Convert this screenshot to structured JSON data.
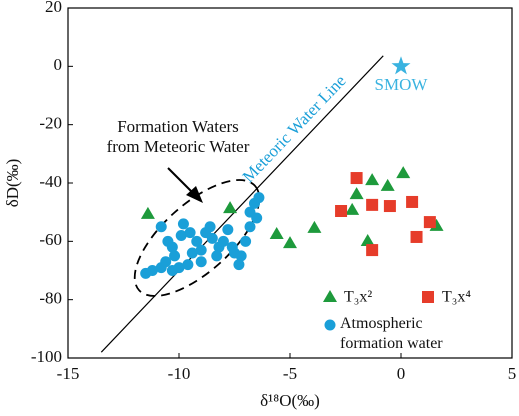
{
  "chart_data": {
    "type": "scatter",
    "xlabel": "δ¹⁸O(‰)",
    "ylabel": "δD(‰)",
    "xlim": [
      -15,
      5
    ],
    "ylim": [
      -100,
      20
    ],
    "xticks": [
      -15,
      -10,
      -5,
      0,
      5
    ],
    "yticks": [
      20,
      0,
      -20,
      -40,
      -60,
      -80,
      -100
    ],
    "series": [
      {
        "name": "T₃x²",
        "color": "#1e9a3c",
        "marker": "triangle",
        "x": [
          -11.4,
          -7.7,
          -5.6,
          -5.0,
          -3.9,
          -2.0,
          -1.3,
          -0.6,
          0.1,
          -2.2,
          -1.5,
          1.6
        ],
        "values": [
          -50.6,
          -48.6,
          -57.5,
          -60.6,
          -55.4,
          -43.8,
          -39,
          -41,
          -36.6,
          -49.2,
          -59.9,
          -54.7
        ]
      },
      {
        "name": "T₃x⁴",
        "color": "#e63c2a",
        "marker": "square",
        "x": [
          -2.7,
          -2.0,
          -1.3,
          -0.5,
          0.5,
          -1.3,
          0.7,
          1.3
        ],
        "values": [
          -49.6,
          -38.3,
          -47.5,
          -47.9,
          -46.5,
          -63,
          -58.5,
          -53.4
        ]
      },
      {
        "name": "Atmospheric formation water",
        "color": "#1a9fd8",
        "marker": "circle",
        "x": [
          -11.5,
          -11.2,
          -10.8,
          -10.3,
          -10,
          -10.2,
          -10.6,
          -10.5,
          -10.8,
          -9.8,
          -9.5,
          -9.2,
          -9,
          -9.4,
          -8.8,
          -8.6,
          -8.5,
          -8.2,
          -8,
          -7.8,
          -7.5,
          -7.3,
          -7.6,
          -7,
          -6.8,
          -6.8,
          -6.6,
          -6.4,
          -6.5,
          -9.6,
          -9,
          -8.3,
          -7.2,
          -10.3,
          -9.9
        ],
        "values": [
          -71,
          -70,
          -69,
          -70,
          -69,
          -65,
          -67,
          -60,
          -55,
          -54,
          -57,
          -60,
          -63,
          -64,
          -57,
          -55,
          -59,
          -62,
          -60,
          -56,
          -64,
          -68,
          -62,
          -60,
          -55,
          -50,
          -47,
          -45,
          -52,
          -68,
          -67,
          -65,
          -65,
          -62,
          -58
        ]
      }
    ],
    "reference_line": {
      "name": "Meteoric Water Line",
      "color": "#1a9fd8",
      "x": [
        -13.5,
        -0.8
      ],
      "y": [
        -98,
        3.6
      ]
    },
    "reference_point": {
      "name": "SMOW",
      "color": "#3ab3e0",
      "x": 0,
      "y": 0
    },
    "annotation": [
      "Formation Waters",
      "from Meteoric Water"
    ],
    "legend": "lower right"
  }
}
